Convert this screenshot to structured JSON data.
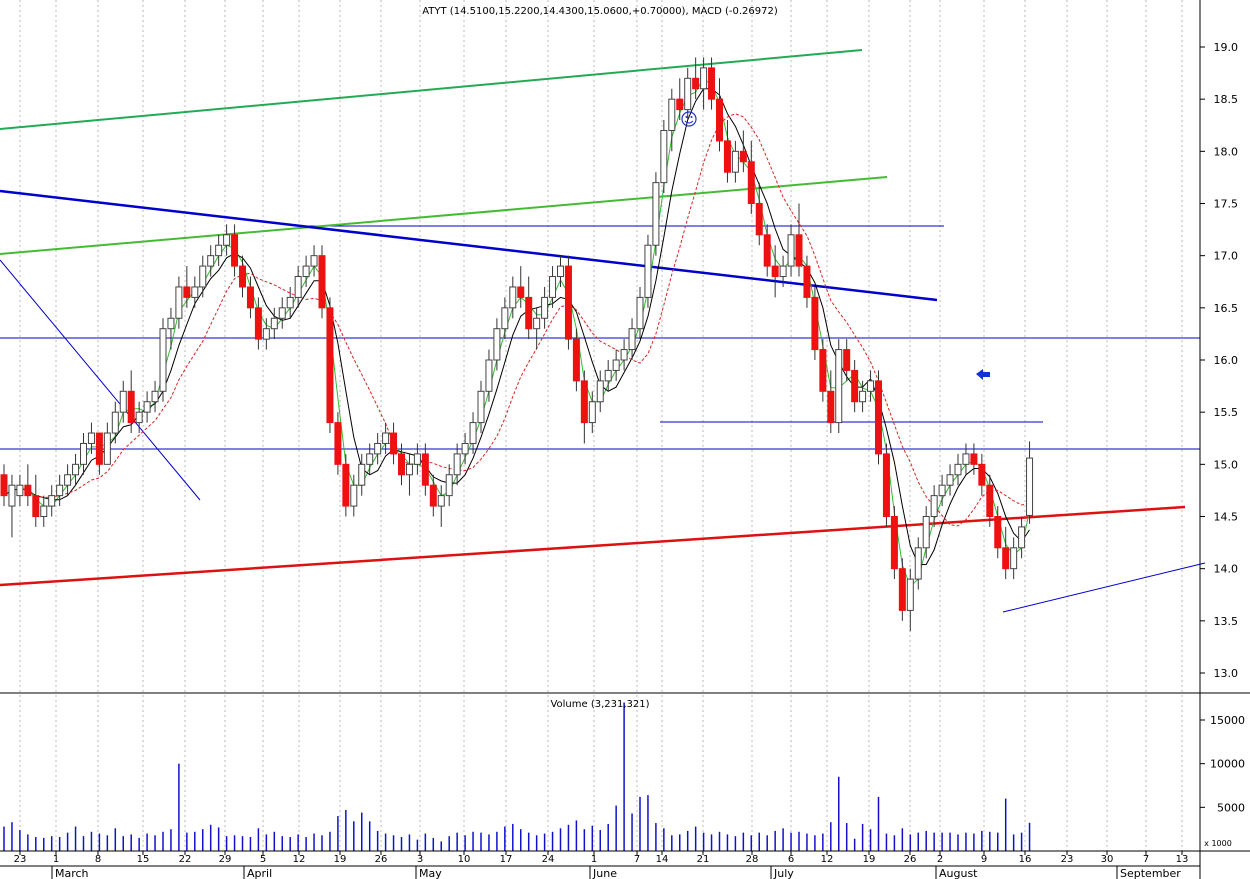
{
  "header": {
    "price_title": "ATYT (14.5100,15.2200,14.4300,15.0600,+0.70000), MACD (-0.26972)",
    "volume_title": "Volume (3,231,321)",
    "volume_unit": "x 1000"
  },
  "colors": {
    "up": "#1a7a1a",
    "down": "#ee1111",
    "ma_fast": "#000000",
    "ma_mid": "#33bb33",
    "ma_slow": "#dd2222",
    "trend_blue": "#0000cc",
    "trend_green": "#22aa55",
    "support_red": "#dd1111",
    "volume_bar": "#1111cc"
  },
  "chart_data": {
    "type": "candlestick",
    "title": "ATYT (14.5100,15.2200,14.4300,15.0600,+0.70000), MACD (-0.26972)",
    "ylim": [
      12.8,
      19.5
    ],
    "y_ticks": [
      "19.0",
      "18.5",
      "18.0",
      "17.5",
      "17.0",
      "16.5",
      "16.0",
      "15.5",
      "15.0",
      "14.5",
      "14.0",
      "13.5",
      "13.0"
    ],
    "volume_ylim": [
      0,
      18000
    ],
    "volume_ticks": [
      "15000",
      "10000",
      "5000"
    ],
    "day_ticks": [
      "23",
      "1",
      "8",
      "15",
      "22",
      "29",
      "5",
      "12",
      "19",
      "26",
      "3",
      "10",
      "17",
      "24",
      "1",
      "7",
      "14",
      "21",
      "28",
      "6",
      "12",
      "19",
      "26",
      "2",
      "9",
      "16",
      "23",
      "30",
      "7",
      "13"
    ],
    "months": [
      "March",
      "April",
      "May",
      "June",
      "July",
      "August",
      "September"
    ],
    "candles": [
      [
        14.9,
        15.0,
        14.6,
        14.7
      ],
      [
        14.6,
        14.9,
        14.3,
        14.8
      ],
      [
        14.7,
        14.9,
        14.6,
        14.8
      ],
      [
        14.8,
        15.0,
        14.6,
        14.7
      ],
      [
        14.7,
        14.9,
        14.4,
        14.5
      ],
      [
        14.5,
        14.7,
        14.4,
        14.6
      ],
      [
        14.6,
        14.8,
        14.5,
        14.7
      ],
      [
        14.7,
        14.9,
        14.6,
        14.8
      ],
      [
        14.8,
        15.0,
        14.7,
        14.9
      ],
      [
        14.9,
        15.1,
        14.8,
        15.0
      ],
      [
        15.0,
        15.3,
        14.9,
        15.2
      ],
      [
        15.2,
        15.4,
        15.1,
        15.3
      ],
      [
        15.3,
        15.3,
        14.9,
        15.0
      ],
      [
        15.0,
        15.4,
        15.0,
        15.3
      ],
      [
        15.3,
        15.6,
        15.2,
        15.5
      ],
      [
        15.5,
        15.8,
        15.4,
        15.7
      ],
      [
        15.7,
        15.9,
        15.3,
        15.4
      ],
      [
        15.4,
        15.6,
        15.3,
        15.5
      ],
      [
        15.5,
        15.7,
        15.4,
        15.6
      ],
      [
        15.6,
        15.8,
        15.5,
        15.7
      ],
      [
        15.7,
        16.4,
        15.6,
        16.3
      ],
      [
        16.3,
        16.5,
        16.1,
        16.4
      ],
      [
        16.4,
        16.8,
        16.3,
        16.7
      ],
      [
        16.7,
        16.9,
        16.5,
        16.6
      ],
      [
        16.6,
        16.8,
        16.5,
        16.7
      ],
      [
        16.7,
        17.0,
        16.6,
        16.9
      ],
      [
        16.9,
        17.1,
        16.8,
        17.0
      ],
      [
        17.0,
        17.2,
        16.9,
        17.1
      ],
      [
        17.1,
        17.3,
        17.0,
        17.2
      ],
      [
        17.2,
        17.3,
        16.8,
        16.9
      ],
      [
        16.9,
        17.0,
        16.6,
        16.7
      ],
      [
        16.7,
        16.8,
        16.4,
        16.5
      ],
      [
        16.5,
        16.6,
        16.1,
        16.2
      ],
      [
        16.2,
        16.4,
        16.1,
        16.3
      ],
      [
        16.3,
        16.5,
        16.2,
        16.4
      ],
      [
        16.4,
        16.6,
        16.3,
        16.5
      ],
      [
        16.5,
        16.7,
        16.4,
        16.6
      ],
      [
        16.6,
        16.9,
        16.5,
        16.8
      ],
      [
        16.8,
        17.0,
        16.7,
        16.9
      ],
      [
        16.9,
        17.1,
        16.8,
        17.0
      ],
      [
        17.0,
        17.1,
        16.4,
        16.5
      ],
      [
        16.5,
        16.6,
        15.3,
        15.4
      ],
      [
        15.4,
        15.5,
        14.9,
        15.0
      ],
      [
        15.0,
        15.1,
        14.5,
        14.6
      ],
      [
        14.6,
        14.9,
        14.5,
        14.8
      ],
      [
        14.8,
        15.1,
        14.7,
        15.0
      ],
      [
        15.0,
        15.2,
        14.9,
        15.1
      ],
      [
        15.1,
        15.3,
        15.0,
        15.2
      ],
      [
        15.2,
        15.4,
        15.1,
        15.3
      ],
      [
        15.3,
        15.4,
        15.0,
        15.1
      ],
      [
        15.1,
        15.2,
        14.8,
        14.9
      ],
      [
        14.9,
        15.1,
        14.7,
        15.0
      ],
      [
        15.0,
        15.2,
        14.9,
        15.1
      ],
      [
        15.1,
        15.2,
        14.7,
        14.8
      ],
      [
        14.8,
        14.9,
        14.5,
        14.6
      ],
      [
        14.6,
        14.8,
        14.4,
        14.7
      ],
      [
        14.7,
        15.0,
        14.6,
        14.9
      ],
      [
        14.9,
        15.2,
        14.8,
        15.1
      ],
      [
        15.1,
        15.3,
        15.0,
        15.2
      ],
      [
        15.2,
        15.5,
        15.1,
        15.4
      ],
      [
        15.4,
        15.8,
        15.3,
        15.7
      ],
      [
        15.7,
        16.1,
        15.6,
        16.0
      ],
      [
        16.0,
        16.4,
        15.9,
        16.3
      ],
      [
        16.3,
        16.6,
        16.2,
        16.5
      ],
      [
        16.5,
        16.8,
        16.4,
        16.7
      ],
      [
        16.7,
        16.9,
        16.5,
        16.6
      ],
      [
        16.6,
        16.8,
        16.2,
        16.3
      ],
      [
        16.3,
        16.5,
        16.1,
        16.4
      ],
      [
        16.4,
        16.7,
        16.3,
        16.6
      ],
      [
        16.6,
        16.9,
        16.5,
        16.8
      ],
      [
        16.8,
        17.0,
        16.7,
        16.9
      ],
      [
        16.9,
        17.0,
        16.1,
        16.2
      ],
      [
        16.2,
        16.3,
        15.7,
        15.8
      ],
      [
        15.8,
        15.9,
        15.2,
        15.4
      ],
      [
        15.4,
        15.7,
        15.3,
        15.6
      ],
      [
        15.6,
        15.9,
        15.5,
        15.8
      ],
      [
        15.8,
        16.0,
        15.7,
        15.9
      ],
      [
        15.9,
        16.1,
        15.8,
        16.0
      ],
      [
        16.0,
        16.2,
        15.9,
        16.1
      ],
      [
        16.1,
        16.4,
        16.0,
        16.3
      ],
      [
        16.3,
        16.7,
        16.2,
        16.6
      ],
      [
        16.6,
        17.2,
        16.5,
        17.1
      ],
      [
        17.1,
        17.8,
        17.0,
        17.7
      ],
      [
        17.7,
        18.3,
        17.6,
        18.2
      ],
      [
        18.2,
        18.6,
        18.0,
        18.5
      ],
      [
        18.5,
        18.7,
        18.3,
        18.4
      ],
      [
        18.4,
        18.8,
        18.3,
        18.7
      ],
      [
        18.7,
        18.9,
        18.5,
        18.6
      ],
      [
        18.6,
        18.9,
        18.4,
        18.8
      ],
      [
        18.8,
        18.9,
        18.4,
        18.5
      ],
      [
        18.5,
        18.7,
        18.0,
        18.1
      ],
      [
        18.1,
        18.3,
        17.7,
        17.8
      ],
      [
        17.8,
        18.1,
        17.7,
        18.0
      ],
      [
        18.0,
        18.2,
        17.8,
        17.9
      ],
      [
        17.9,
        18.1,
        17.4,
        17.5
      ],
      [
        17.5,
        17.7,
        17.1,
        17.2
      ],
      [
        17.2,
        17.3,
        16.8,
        16.9
      ],
      [
        16.9,
        17.1,
        16.6,
        16.8
      ],
      [
        16.8,
        17.0,
        16.7,
        16.9
      ],
      [
        16.9,
        17.3,
        16.8,
        17.2
      ],
      [
        17.2,
        17.5,
        16.8,
        16.9
      ],
      [
        16.9,
        17.0,
        16.5,
        16.6
      ],
      [
        16.6,
        16.7,
        16.0,
        16.1
      ],
      [
        16.1,
        16.2,
        15.6,
        15.7
      ],
      [
        15.7,
        15.9,
        15.3,
        15.4
      ],
      [
        15.4,
        16.2,
        15.3,
        16.1
      ],
      [
        16.1,
        16.2,
        15.8,
        15.9
      ],
      [
        15.9,
        16.0,
        15.5,
        15.6
      ],
      [
        15.6,
        15.8,
        15.5,
        15.7
      ],
      [
        15.7,
        15.9,
        15.6,
        15.8
      ],
      [
        15.8,
        15.9,
        15.0,
        15.1
      ],
      [
        15.1,
        15.2,
        14.4,
        14.5
      ],
      [
        14.5,
        14.6,
        13.9,
        14.0
      ],
      [
        14.0,
        14.1,
        13.5,
        13.6
      ],
      [
        13.6,
        14.0,
        13.4,
        13.9
      ],
      [
        13.9,
        14.3,
        13.8,
        14.2
      ],
      [
        14.2,
        14.6,
        14.1,
        14.5
      ],
      [
        14.5,
        14.8,
        14.4,
        14.7
      ],
      [
        14.7,
        14.9,
        14.6,
        14.8
      ],
      [
        14.8,
        15.0,
        14.7,
        14.9
      ],
      [
        14.9,
        15.1,
        14.8,
        15.0
      ],
      [
        15.0,
        15.2,
        14.9,
        15.1
      ],
      [
        15.1,
        15.2,
        14.9,
        15.0
      ],
      [
        15.0,
        15.1,
        14.7,
        14.8
      ],
      [
        14.8,
        14.9,
        14.4,
        14.5
      ],
      [
        14.5,
        14.6,
        14.1,
        14.2
      ],
      [
        14.2,
        14.4,
        13.9,
        14.0
      ],
      [
        14.0,
        14.3,
        13.9,
        14.2
      ],
      [
        14.2,
        14.5,
        14.1,
        14.4
      ],
      [
        14.51,
        15.22,
        14.43,
        15.06
      ]
    ],
    "volume": [
      2800,
      3300,
      2400,
      1900,
      1600,
      1500,
      1700,
      1600,
      2100,
      2800,
      1700,
      2200,
      2000,
      1800,
      2600,
      1700,
      1900,
      1500,
      2000,
      1800,
      2200,
      2500,
      10000,
      2100,
      2200,
      2500,
      3000,
      2700,
      1700,
      1800,
      1700,
      1600,
      2600,
      1900,
      2200,
      1700,
      1600,
      1900,
      1600,
      2000,
      1800,
      2200,
      4000,
      4700,
      3400,
      4400,
      3400,
      2300,
      2000,
      1800,
      1600,
      1900,
      1300,
      2000,
      1500,
      1100,
      1700,
      2100,
      1800,
      2200,
      2100,
      1900,
      2200,
      2800,
      3100,
      2500,
      2100,
      1800,
      2000,
      2200,
      2600,
      3000,
      3500,
      2500,
      2900,
      2400,
      3100,
      5200,
      17000,
      4300,
      6200,
      6400,
      3200,
      2600,
      1800,
      1900,
      2300,
      2800,
      2100,
      1900,
      2200,
      1900,
      1700,
      2100,
      1800,
      2100,
      1800,
      2300,
      2600,
      2100,
      2200,
      2000,
      1800,
      2000,
      3300,
      8500,
      3200,
      1400,
      3100,
      2500,
      6200,
      2000,
      1800,
      2600,
      1900,
      2100,
      2300,
      2100,
      2100,
      2100,
      1900,
      2100,
      2000,
      2300,
      2200,
      2100,
      6000,
      1900,
      2100,
      3231
    ]
  }
}
